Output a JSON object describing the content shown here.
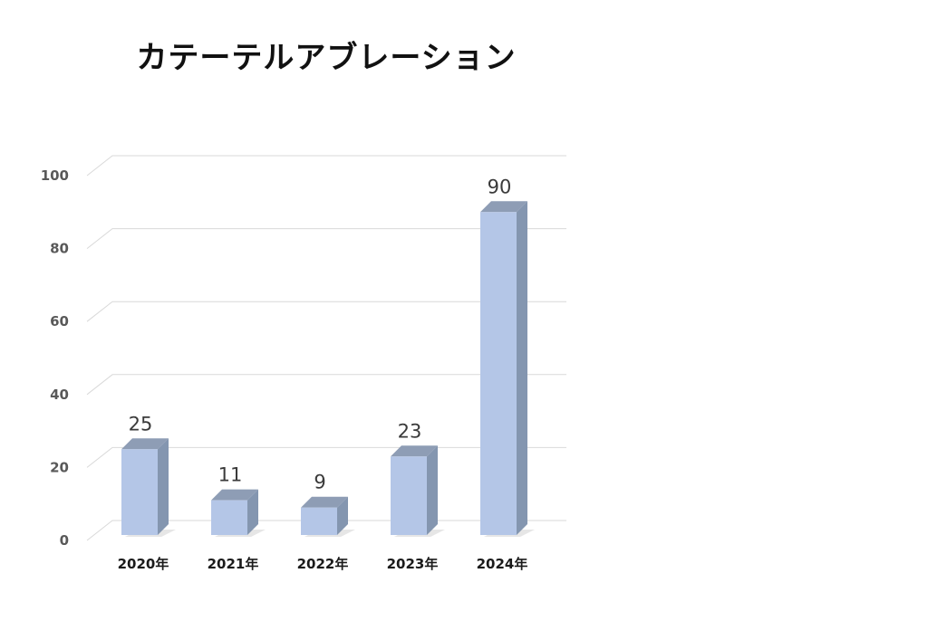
{
  "chart_data": {
    "type": "bar",
    "title": "カテーテルアブレーション",
    "categories": [
      "2020年",
      "2021年",
      "2022年",
      "2023年",
      "2024年"
    ],
    "values": [
      25,
      11,
      9,
      23,
      90
    ],
    "ylim": [
      0,
      100
    ],
    "yticks": [
      0,
      20,
      40,
      60,
      80,
      100
    ],
    "xlabel": "",
    "ylabel": "",
    "grid": true,
    "legend": "none",
    "data_labels": true,
    "bar_color": "#b4c6e7",
    "bar_side_color": "#8496b0",
    "bar_top_color": "#8e9db5"
  }
}
